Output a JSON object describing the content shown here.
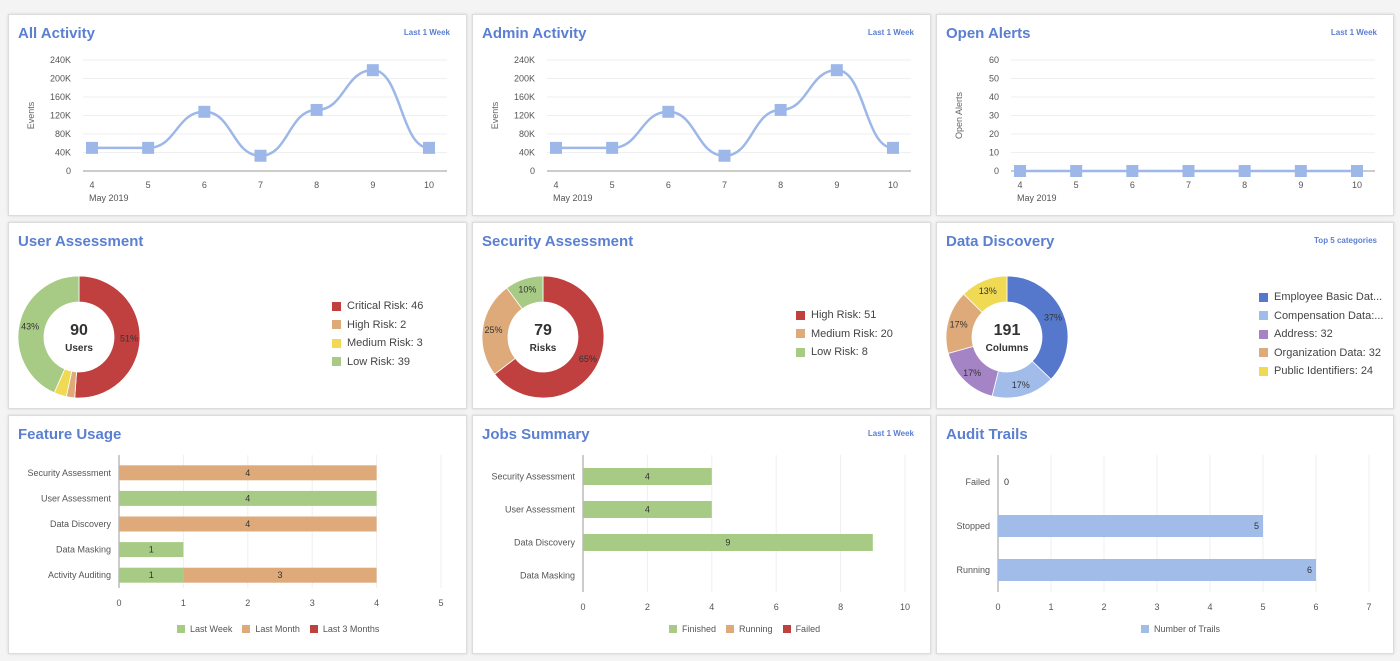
{
  "colors": {
    "accent": "#5b7fd1",
    "line": "#9db8e8",
    "critical": "#c0403f",
    "high_tan": "#deaa7a",
    "medium_yellow": "#f0da54",
    "low_green": "#a7cb84",
    "blue_dark": "#5578cc",
    "blue_light": "#a2bcea",
    "purple": "#a484c4"
  },
  "panels": {
    "all_activity": {
      "title": "All Activity",
      "link": "Last 1 Week"
    },
    "admin_activity": {
      "title": "Admin Activity",
      "link": "Last 1 Week"
    },
    "open_alerts": {
      "title": "Open Alerts",
      "link": "Last 1 Week"
    },
    "user_assessment": {
      "title": "User Assessment",
      "center_value": "90",
      "center_label": "Users"
    },
    "security_assessment": {
      "title": "Security Assessment",
      "center_value": "79",
      "center_label": "Risks"
    },
    "data_discovery": {
      "title": "Data Discovery",
      "link": "Top 5 categories",
      "center_value": "191",
      "center_label": "Columns"
    },
    "feature_usage": {
      "title": "Feature Usage"
    },
    "jobs_summary": {
      "title": "Jobs Summary",
      "link": "Last 1 Week"
    },
    "audit_trails": {
      "title": "Audit Trails"
    }
  },
  "chart_data": [
    {
      "id": "all_activity",
      "type": "line",
      "x": [
        "4",
        "5",
        "6",
        "7",
        "8",
        "9",
        "10"
      ],
      "x_sub": "May 2019",
      "values": [
        50000,
        50000,
        128000,
        33000,
        132000,
        218000,
        50000
      ],
      "yticks": [
        "0",
        "40K",
        "80K",
        "120K",
        "160K",
        "200K",
        "240K"
      ],
      "ylim": [
        0,
        240000
      ],
      "ylabel": "Events"
    },
    {
      "id": "admin_activity",
      "type": "line",
      "x": [
        "4",
        "5",
        "6",
        "7",
        "8",
        "9",
        "10"
      ],
      "x_sub": "May 2019",
      "values": [
        50000,
        50000,
        128000,
        33000,
        132000,
        218000,
        50000
      ],
      "yticks": [
        "0",
        "40K",
        "80K",
        "120K",
        "160K",
        "200K",
        "240K"
      ],
      "ylim": [
        0,
        240000
      ],
      "ylabel": "Events"
    },
    {
      "id": "open_alerts",
      "type": "line",
      "x": [
        "4",
        "5",
        "6",
        "7",
        "8",
        "9",
        "10"
      ],
      "x_sub": "May 2019",
      "values": [
        0,
        0,
        0,
        0,
        0,
        0,
        0
      ],
      "yticks": [
        "0",
        "10",
        "20",
        "30",
        "40",
        "50",
        "60"
      ],
      "ylim": [
        0,
        60
      ],
      "ylabel": "Open Alerts"
    },
    {
      "id": "user_assessment",
      "type": "pie",
      "slices": [
        {
          "label": "Critical Risk: 46",
          "value": 46,
          "pct": "51%",
          "color": "#c0403f"
        },
        {
          "label": "High Risk: 2",
          "value": 2,
          "pct": "",
          "color": "#deaa7a"
        },
        {
          "label": "Medium Risk: 3",
          "value": 3,
          "pct": "",
          "color": "#f0da54"
        },
        {
          "label": "Low Risk: 39",
          "value": 39,
          "pct": "43%",
          "color": "#a7cb84"
        }
      ]
    },
    {
      "id": "security_assessment",
      "type": "pie",
      "slices": [
        {
          "label": "High Risk: 51",
          "value": 51,
          "pct": "65%",
          "color": "#c0403f"
        },
        {
          "label": "Medium Risk: 20",
          "value": 20,
          "pct": "25%",
          "color": "#deaa7a"
        },
        {
          "label": "Low Risk: 8",
          "value": 8,
          "pct": "10%",
          "color": "#a7cb84"
        }
      ]
    },
    {
      "id": "data_discovery",
      "type": "pie",
      "slices": [
        {
          "label": "Employee Basic Dat...",
          "value": 71,
          "pct": "37%",
          "color": "#5578cc"
        },
        {
          "label": "Compensation Data:...",
          "value": 32,
          "pct": "17%",
          "color": "#a2bcea"
        },
        {
          "label": "Address: 32",
          "value": 32,
          "pct": "17%",
          "color": "#a484c4"
        },
        {
          "label": "Organization Data: 32",
          "value": 32,
          "pct": "17%",
          "color": "#deaa7a"
        },
        {
          "label": "Public Identifiers: 24",
          "value": 24,
          "pct": "13%",
          "color": "#f0da54"
        }
      ]
    },
    {
      "id": "feature_usage",
      "type": "bar",
      "orientation": "horizontal",
      "stacked": true,
      "categories": [
        "Security Assessment",
        "User Assessment",
        "Data Discovery",
        "Data Masking",
        "Activity Auditing"
      ],
      "series": [
        {
          "name": "Last Week",
          "color": "#a7cb84",
          "values": [
            0,
            4,
            0,
            1,
            1
          ]
        },
        {
          "name": "Last Month",
          "color": "#deaa7a",
          "values": [
            4,
            0,
            4,
            0,
            3
          ]
        },
        {
          "name": "Last 3 Months",
          "color": "#c0403f",
          "values": [
            0,
            0,
            0,
            0,
            0
          ]
        }
      ],
      "xlim": [
        0,
        5
      ],
      "xticks": [
        "0",
        "1",
        "2",
        "3",
        "4",
        "5"
      ]
    },
    {
      "id": "jobs_summary",
      "type": "bar",
      "orientation": "horizontal",
      "stacked": true,
      "categories": [
        "Security Assessment",
        "User Assessment",
        "Data Discovery",
        "Data Masking"
      ],
      "series": [
        {
          "name": "Finished",
          "color": "#a7cb84",
          "values": [
            4,
            4,
            9,
            0
          ]
        },
        {
          "name": "Running",
          "color": "#deaa7a",
          "values": [
            0,
            0,
            0,
            0
          ]
        },
        {
          "name": "Failed",
          "color": "#c0403f",
          "values": [
            0,
            0,
            0,
            0
          ]
        }
      ],
      "xlim": [
        0,
        10
      ],
      "xticks": [
        "0",
        "2",
        "4",
        "6",
        "8",
        "10"
      ]
    },
    {
      "id": "audit_trails",
      "type": "bar",
      "orientation": "horizontal",
      "stacked": false,
      "categories": [
        "Failed",
        "Stopped",
        "Running"
      ],
      "series": [
        {
          "name": "Number of Trails",
          "color": "#a2bcea",
          "values": [
            0,
            5,
            6
          ]
        }
      ],
      "xlim": [
        0,
        7
      ],
      "xticks": [
        "0",
        "1",
        "2",
        "3",
        "4",
        "5",
        "6",
        "7"
      ],
      "label_position": "inside-end"
    }
  ]
}
